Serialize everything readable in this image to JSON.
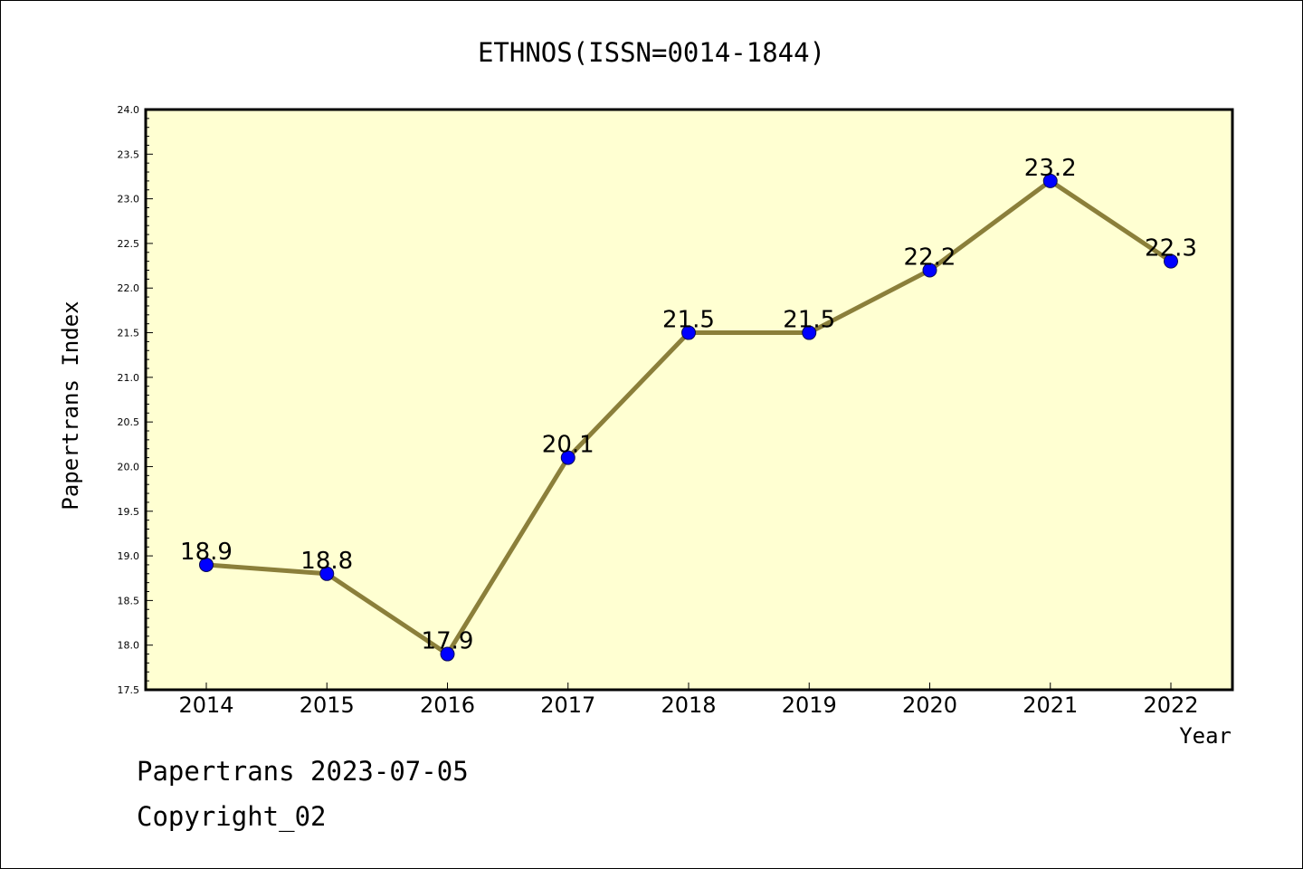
{
  "chart_data": {
    "type": "line",
    "title": "ETHNOS(ISSN=0014-1844)",
    "xlabel": "Year",
    "ylabel": "Papertrans Index",
    "categories": [
      "2014",
      "2015",
      "2016",
      "2017",
      "2018",
      "2019",
      "2020",
      "2021",
      "2022"
    ],
    "series": [
      {
        "values": [
          18.9,
          18.8,
          17.9,
          20.1,
          21.5,
          21.5,
          22.2,
          23.2,
          22.3
        ],
        "labels": [
          "18.9",
          "18.8",
          "17.9",
          "20.1",
          "21.5",
          "21.5",
          "22.2",
          "23.2",
          "22.3"
        ]
      }
    ],
    "ylim": [
      17.5,
      24.0
    ],
    "yticks": [
      "17.5",
      "18.0",
      "18.5",
      "19.0",
      "19.5",
      "20.0",
      "20.5",
      "21.0",
      "21.5",
      "22.0",
      "22.5",
      "23.0",
      "23.5",
      "24.0"
    ],
    "grid": false,
    "legend": "none",
    "colors": {
      "plot_background": "#ffffd2",
      "line": "#8b7f3a",
      "marker": "#0000ff"
    }
  },
  "footer": {
    "line1": "Papertrans 2023-07-05",
    "line2": "Copyright_02"
  }
}
